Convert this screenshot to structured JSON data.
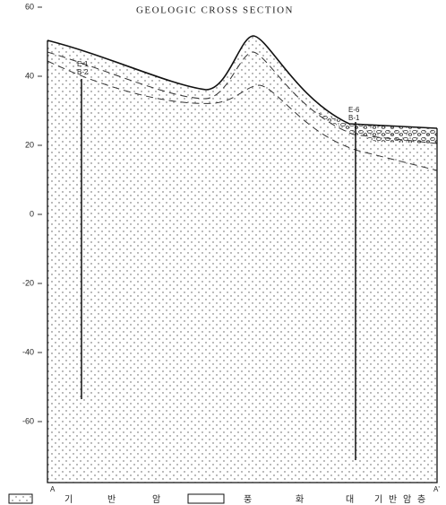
{
  "title": "GEOLOGIC CROSS SECTION",
  "axis": {
    "ticks": [
      60,
      40,
      20,
      0,
      -20,
      -40,
      -60
    ]
  },
  "boreholes": [
    {
      "label": "E-1",
      "sublabel": "B-2"
    },
    {
      "label": "E-6",
      "sublabel": "B-1"
    }
  ],
  "section_ends": [
    "A",
    "A'"
  ],
  "legend": [
    {
      "label": [
        "기",
        "반",
        "암"
      ]
    },
    {
      "label": [
        "풍",
        "화",
        "대"
      ]
    },
    {
      "label": [
        "기",
        "반",
        "암",
        "층"
      ]
    }
  ]
}
